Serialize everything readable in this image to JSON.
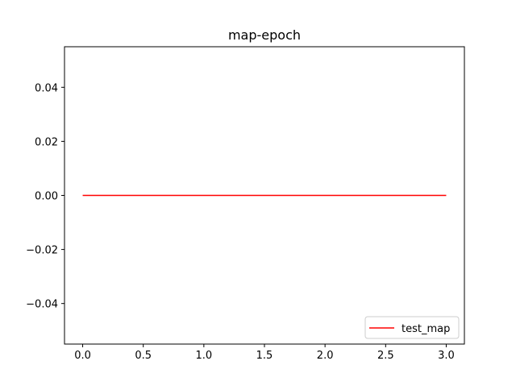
{
  "chart_data": {
    "type": "line",
    "title": "map-epoch",
    "xlabel": "",
    "ylabel": "",
    "xlim": [
      -0.15,
      3.15
    ],
    "ylim": [
      -0.055,
      0.055
    ],
    "xticks": [
      0.0,
      0.5,
      1.0,
      1.5,
      2.0,
      2.5,
      3.0
    ],
    "xtick_labels": [
      "0.0",
      "0.5",
      "1.0",
      "1.5",
      "2.0",
      "2.5",
      "3.0"
    ],
    "yticks": [
      0.04,
      0.02,
      0.0,
      -0.02,
      -0.04
    ],
    "ytick_labels": [
      "0.04",
      "0.02",
      "0.00",
      "−0.02",
      "−0.04"
    ],
    "grid": false,
    "legend_position": "lower right",
    "series": [
      {
        "name": "test_map",
        "color": "#ff0000",
        "x": [
          0,
          1,
          2,
          3
        ],
        "y": [
          0.0,
          0.0,
          0.0,
          0.0
        ]
      }
    ]
  }
}
